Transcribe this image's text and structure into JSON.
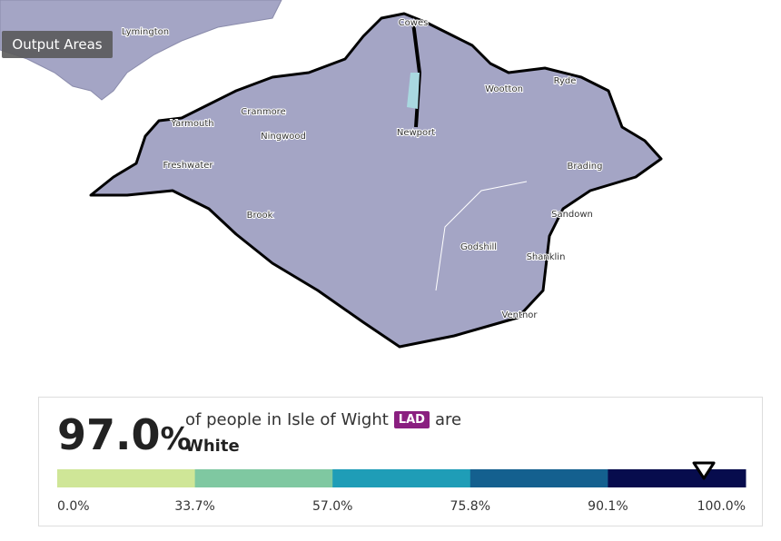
{
  "map": {
    "layer_button": "Output Areas",
    "place_labels": [
      "Lymington",
      "Cowes",
      "Yarmouth",
      "Cranmore",
      "Ningwood",
      "Newport",
      "Wootton",
      "Ryde",
      "Freshwater",
      "Brading",
      "Brook",
      "Sandown",
      "Godshill",
      "Shanklin",
      "Ventnor"
    ]
  },
  "summary": {
    "value": {
      "value": 97,
      "label": "97.0"
    },
    "unit": "%",
    "text_before": "of people in Isle of Wight",
    "badge": "LAD",
    "text_after": "are",
    "category": "White"
  },
  "legend": {
    "colors": [
      "#cfe697",
      "#7fc8a1",
      "#1f9db7",
      "#14608f",
      "#070c4d"
    ],
    "breaks": [
      {
        "value": 0,
        "label": "0.0%"
      },
      {
        "value": 33.7,
        "label": "33.7%"
      },
      {
        "value": 57,
        "label": "57.0%"
      },
      {
        "value": 75.8,
        "label": "75.8%"
      },
      {
        "value": 90.1,
        "label": "90.1%"
      },
      {
        "value": 100,
        "label": "100.0%"
      }
    ]
  }
}
